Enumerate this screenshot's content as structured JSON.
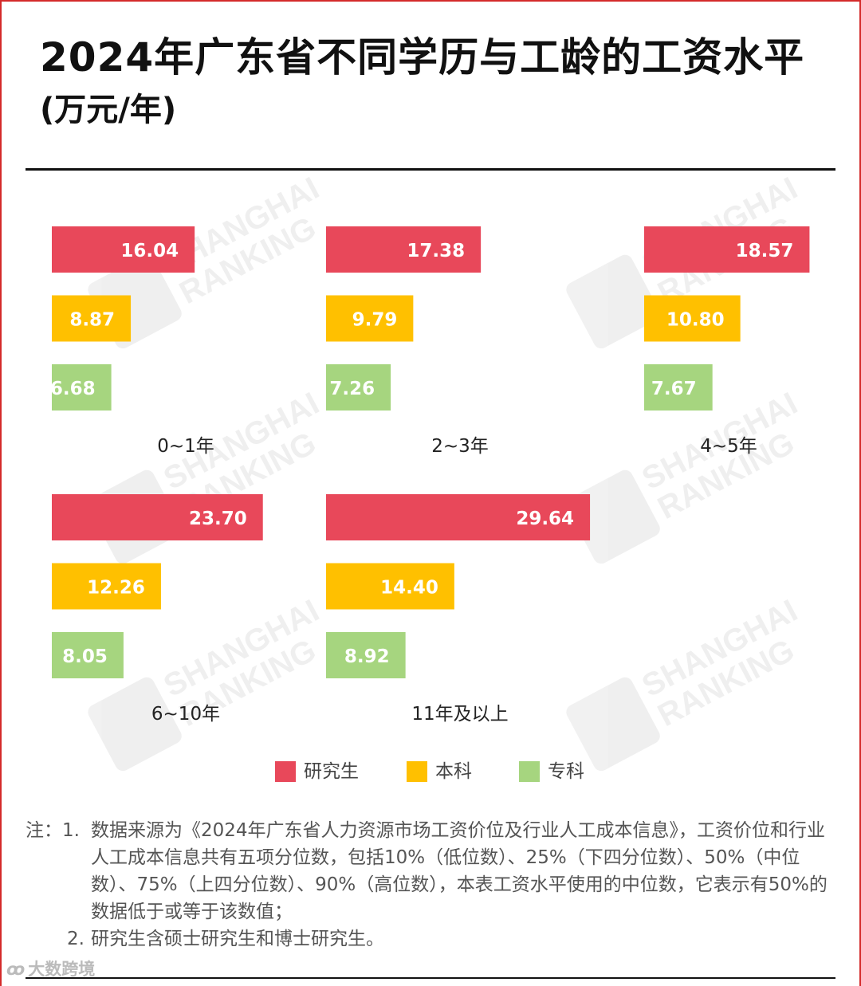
{
  "title": "2024年广东省不同学历与工龄的工资水平",
  "subtitle": "(万元/年)",
  "colors": {
    "graduate": "#e8485a",
    "bachelor": "#ffc000",
    "associate": "#a6d57f",
    "frame": "#d42a2a"
  },
  "chart_data": {
    "type": "bar",
    "orientation": "horizontal",
    "panels": [
      {
        "title": "0~1年",
        "values": [
          16.04,
          8.87,
          6.68
        ],
        "labels": [
          "16.04",
          "8.87",
          "6.68"
        ]
      },
      {
        "title": "2~3年",
        "values": [
          17.38,
          9.79,
          7.26
        ],
        "labels": [
          "17.38",
          "9.79",
          "7.26"
        ]
      },
      {
        "title": "4~5年",
        "values": [
          18.57,
          10.8,
          7.67
        ],
        "labels": [
          "18.57",
          "10.80",
          "7.67"
        ]
      },
      {
        "title": "6~10年",
        "values": [
          23.7,
          12.26,
          8.05
        ],
        "labels": [
          "23.70",
          "12.26",
          "8.05"
        ]
      },
      {
        "title": "11年及以上",
        "values": [
          29.64,
          14.4,
          8.92
        ],
        "labels": [
          "29.64",
          "14.40",
          "8.92"
        ]
      }
    ],
    "series": [
      {
        "name": "研究生",
        "color": "#e8485a"
      },
      {
        "name": "本科",
        "color": "#ffc000"
      },
      {
        "name": "专科",
        "color": "#a6d57f"
      }
    ],
    "legend_position": "bottom",
    "grid": false
  },
  "legend": [
    {
      "label": "研究生",
      "color": "#e8485a"
    },
    {
      "label": "本科",
      "color": "#ffc000"
    },
    {
      "label": "专科",
      "color": "#a6d57f"
    }
  ],
  "notes": [
    {
      "prefix": "注：1.",
      "text": "数据来源为《2024年广东省人力资源市场工资价位及行业人工成本信息》，工资价位和行业人工成本信息共有五项分位数，包括10%（低位数）、25%（下四分位数）、50%（中位数）、75%（上四分位数）、90%（高位数），本表工资水平使用的中位数，它表示有50%的数据低于或等于该数值；"
    },
    {
      "prefix": "2.",
      "text": "研究生含硕士研究生和博士研究生。"
    }
  ],
  "watermark": {
    "line1": "SHANGHAI",
    "line2": "RANKING"
  },
  "source_badge": "大数跨境"
}
